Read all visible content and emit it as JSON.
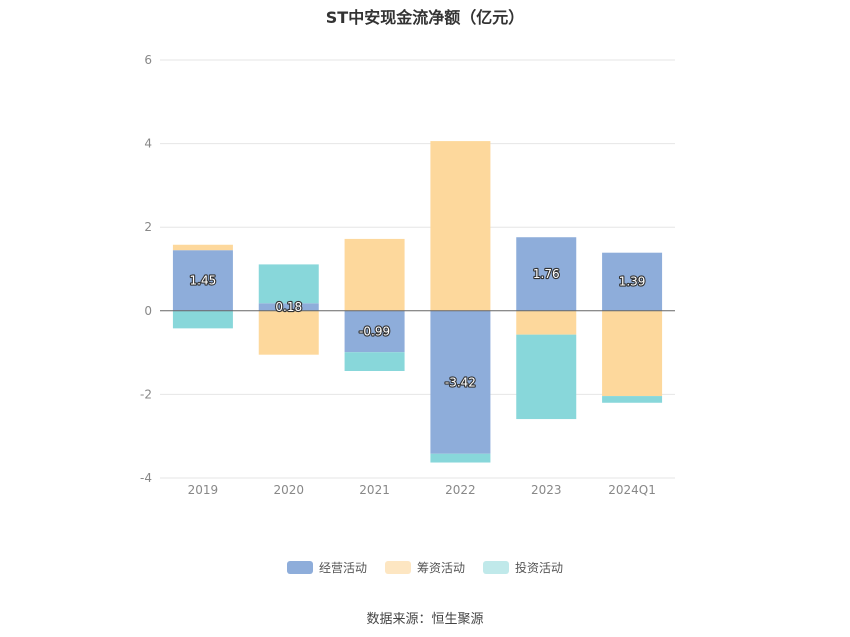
{
  "chart_data": {
    "type": "bar",
    "stacked": true,
    "title": "ST中安现金流净额（亿元）",
    "categories": [
      "2019",
      "2020",
      "2021",
      "2022",
      "2023",
      "2024Q1"
    ],
    "series": [
      {
        "name": "经营活动",
        "color": "#8eadda",
        "values": [
          1.45,
          0.18,
          -0.99,
          -3.42,
          1.76,
          1.39
        ],
        "labels": [
          "1.45",
          "0.18",
          "-0.99",
          "-3.42",
          "1.76",
          "1.39"
        ]
      },
      {
        "name": "筹资活动",
        "color": "#fdd89c",
        "values": [
          0.13,
          -1.05,
          1.72,
          4.06,
          -0.57,
          -2.04
        ]
      },
      {
        "name": "投资活动",
        "color": "#88d7da",
        "values": [
          -0.42,
          0.93,
          -0.45,
          -0.21,
          -2.02,
          -0.16
        ]
      }
    ],
    "ylim": [
      -4,
      6
    ],
    "yticks": [
      -4,
      -2,
      0,
      2,
      4,
      6
    ],
    "grid": true,
    "legend_position": "bottom"
  },
  "legend": {
    "swatch_colors": [
      "#8eadda",
      "#fde6c2",
      "#c0e9ea"
    ]
  },
  "source": "数据来源：恒生聚源"
}
